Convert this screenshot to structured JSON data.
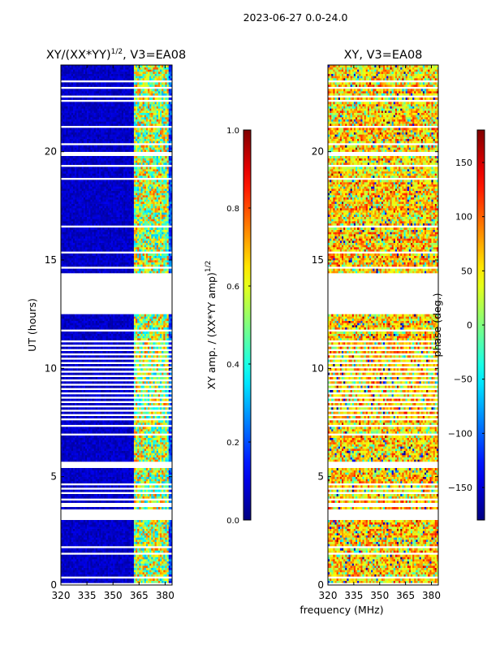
{
  "suptitle": "2023-06-27 0.0-24.0",
  "shared_xlabel": "frequency (MHz)",
  "chart_data": [
    {
      "type": "heatmap",
      "title_main": "XY/(XX*YY)",
      "title_sup": "1/2",
      "title_rest": ", V3=EA08",
      "ylabel": "UT (hours)",
      "xlim": [
        320,
        384
      ],
      "ylim": [
        0,
        24
      ],
      "xticks": [
        320,
        335,
        350,
        365,
        380
      ],
      "yticks": [
        0,
        5,
        10,
        15,
        20
      ],
      "colorbar": {
        "label_main": "XY amp. / (XX*YY amp)",
        "label_sup": "1/2",
        "range": [
          0.0,
          1.0
        ],
        "ticks": [
          0.0,
          0.2,
          0.4,
          0.6,
          0.8,
          1.0
        ],
        "tick_labels": [
          "0.0",
          "0.2",
          "0.4",
          "0.6",
          "0.8",
          "1.0"
        ],
        "colormap": "jet"
      },
      "value_profile": "low amplitude (~0.05) below 362 MHz; elevated amplitude (0.3-0.8) between 362 and 382 MHz"
    },
    {
      "type": "heatmap",
      "title_main": "XY, V3=EA08",
      "ylabel": "phase (deg.)",
      "xlim": [
        320,
        384
      ],
      "ylim": [
        0,
        24
      ],
      "xticks": [
        320,
        335,
        350,
        365,
        380
      ],
      "yticks": [
        0,
        5,
        10,
        15,
        20
      ],
      "colorbar": {
        "label_main": "phase (deg.)",
        "range": [
          -180,
          180
        ],
        "ticks": [
          -150,
          -100,
          -50,
          0,
          50,
          100,
          150
        ],
        "tick_labels": [
          "−150",
          "−100",
          "−50",
          "0",
          "50",
          "100",
          "150"
        ],
        "colormap": "jet"
      },
      "value_profile": "phase mostly 0 to 120 deg with scattered -180 to 180 values"
    }
  ],
  "data_gaps_ut_hours": [
    [
      0.0,
      0.12
    ],
    [
      0.3,
      0.45
    ],
    [
      0.8,
      0.85
    ],
    [
      1.45,
      1.5
    ],
    [
      1.75,
      1.8
    ],
    [
      2.0,
      2.05
    ],
    [
      3.05,
      3.5
    ],
    [
      3.6,
      3.8
    ],
    [
      3.95,
      4.05
    ],
    [
      4.25,
      4.3
    ],
    [
      4.45,
      4.5
    ],
    [
      4.65,
      4.7
    ],
    [
      5.4,
      5.7
    ],
    [
      6.0,
      6.05
    ],
    [
      6.95,
      7.0
    ],
    [
      7.35,
      7.4
    ],
    [
      7.65,
      7.7
    ],
    [
      7.85,
      7.9
    ],
    [
      8.05,
      8.1
    ],
    [
      8.25,
      8.3
    ],
    [
      8.45,
      8.5
    ],
    [
      8.65,
      8.7
    ],
    [
      8.85,
      8.9
    ],
    [
      9.05,
      9.1
    ],
    [
      9.25,
      9.3
    ],
    [
      9.45,
      9.5
    ],
    [
      9.65,
      9.7
    ],
    [
      9.85,
      9.9
    ],
    [
      10.05,
      10.1
    ],
    [
      10.25,
      10.3
    ],
    [
      10.45,
      10.5
    ],
    [
      10.65,
      10.7
    ],
    [
      10.85,
      10.9
    ],
    [
      11.05,
      11.1
    ],
    [
      11.25,
      11.3
    ],
    [
      11.5,
      11.55
    ],
    [
      11.75,
      11.8
    ],
    [
      12.0,
      12.05
    ],
    [
      12.3,
      12.35
    ],
    [
      12.5,
      14.4
    ],
    [
      14.6,
      14.7
    ],
    [
      15.35,
      15.45
    ],
    [
      16.5,
      16.6
    ],
    [
      17.5,
      17.55
    ],
    [
      18.7,
      18.8
    ],
    [
      19.3,
      19.4
    ],
    [
      19.8,
      20.05
    ],
    [
      20.3,
      20.4
    ],
    [
      20.7,
      20.75
    ],
    [
      21.1,
      21.25
    ],
    [
      21.6,
      21.65
    ],
    [
      22.0,
      22.05
    ],
    [
      22.35,
      22.4
    ],
    [
      22.55,
      22.6
    ],
    [
      22.9,
      23.0
    ],
    [
      23.2,
      23.35
    ]
  ]
}
